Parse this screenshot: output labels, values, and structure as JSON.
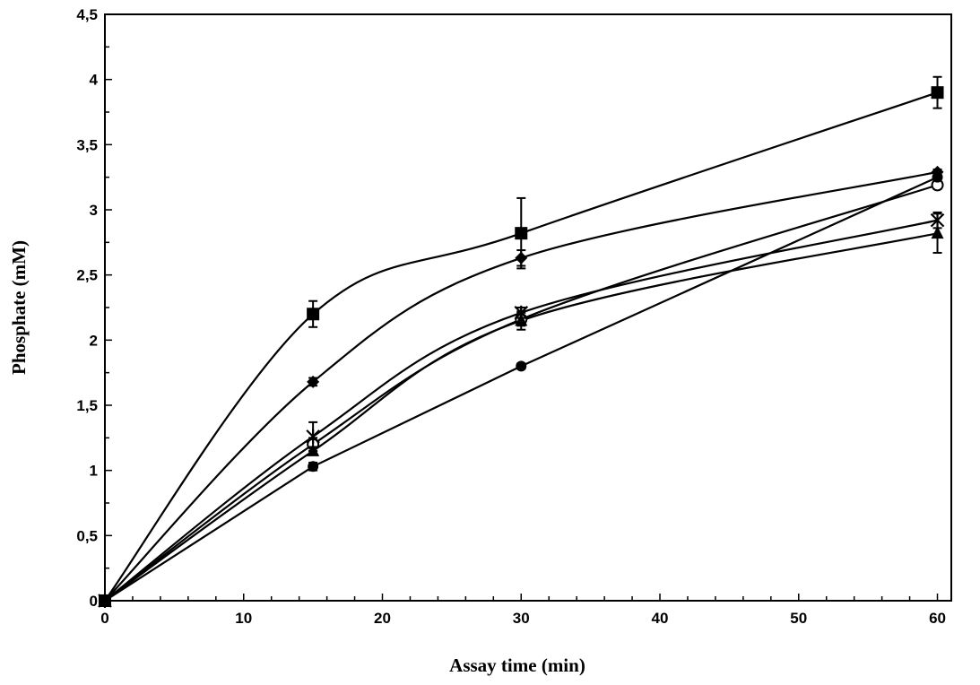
{
  "chart_data": {
    "type": "line",
    "title": "",
    "xlabel": "Assay time (min)",
    "ylabel": "Phosphate (mM)",
    "xlim": [
      0,
      61
    ],
    "ylim": [
      0,
      4.5
    ],
    "x_ticks": [
      "0",
      "10",
      "20",
      "30",
      "40",
      "50",
      "60"
    ],
    "y_ticks": [
      "0",
      "0,5",
      "1",
      "1,5",
      "2",
      "2,5",
      "3",
      "3,5",
      "4",
      "4,5"
    ],
    "x": [
      0,
      15,
      30,
      60
    ],
    "grid": false,
    "series": [
      {
        "name": "square",
        "marker": "square",
        "smooth": true,
        "values": [
          0,
          2.2,
          2.82,
          3.9
        ],
        "errors": [
          0,
          0.1,
          0.27,
          0.12
        ]
      },
      {
        "name": "diamond",
        "marker": "diamond",
        "smooth": true,
        "values": [
          0,
          1.68,
          2.63,
          3.29
        ],
        "errors": [
          0,
          0.03,
          0.06,
          0.02
        ]
      },
      {
        "name": "open-circle",
        "marker": "open-circle",
        "smooth": true,
        "values": [
          0,
          1.2,
          2.16,
          3.19
        ],
        "errors": [
          0,
          0.05,
          0.05,
          0.03
        ]
      },
      {
        "name": "star",
        "marker": "star",
        "smooth": true,
        "values": [
          0,
          1.26,
          2.21,
          2.92
        ],
        "errors": [
          0,
          0.11,
          0.04,
          0.06
        ]
      },
      {
        "name": "triangle",
        "marker": "triangle",
        "smooth": true,
        "values": [
          0,
          1.15,
          2.15,
          2.82
        ],
        "errors": [
          0,
          0.03,
          0.07,
          0.15
        ]
      },
      {
        "name": "filled-circle",
        "marker": "filled-circle",
        "smooth": false,
        "values": [
          0,
          1.03,
          1.8,
          3.25
        ],
        "errors": [
          0,
          0.03,
          0.02,
          0.02
        ]
      }
    ]
  }
}
